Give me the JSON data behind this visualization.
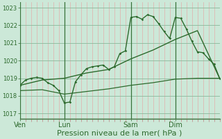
{
  "background_color": "#cce8d8",
  "line_color_dark": "#2d6a2d",
  "grid_color_major_y": "#8ab89a",
  "grid_color_major_x": "#8ab89a",
  "grid_color_minor_x": "#e8a0a0",
  "xlabel": "Pression niveau de la mer( hPa )",
  "xlabel_fontsize": 8,
  "ylim": [
    1016.7,
    1023.3
  ],
  "yticks": [
    1017,
    1018,
    1019,
    1020,
    1021,
    1022,
    1023
  ],
  "xtick_labels": [
    "Ven",
    "Lun",
    "Sam",
    "Dim"
  ],
  "xtick_positions": [
    0,
    48,
    120,
    168
  ],
  "total_hours": 216,
  "line1_x": [
    0,
    24,
    48,
    72,
    96,
    120,
    144,
    168,
    192,
    216
  ],
  "line1_y": [
    1018.6,
    1018.9,
    1019.0,
    1019.3,
    1019.5,
    1020.1,
    1020.6,
    1021.2,
    1021.7,
    1019.0
  ],
  "line2_x": [
    0,
    6,
    12,
    18,
    24,
    30,
    36,
    42,
    48,
    54,
    60,
    66,
    72,
    78,
    84,
    90,
    96,
    102,
    108,
    114,
    120,
    126,
    132,
    138,
    144,
    150,
    156,
    162,
    168,
    174,
    180,
    186,
    192,
    198,
    204,
    210,
    216
  ],
  "line2_y": [
    1018.6,
    1018.9,
    1019.0,
    1019.05,
    1019.0,
    1018.75,
    1018.6,
    1018.3,
    1017.6,
    1017.65,
    1018.8,
    1019.2,
    1019.55,
    1019.65,
    1019.7,
    1019.75,
    1019.5,
    1019.65,
    1020.4,
    1020.55,
    1022.45,
    1022.5,
    1022.35,
    1022.6,
    1022.5,
    1022.1,
    1021.65,
    1021.25,
    1022.45,
    1022.4,
    1021.8,
    1021.1,
    1020.5,
    1020.45,
    1020.1,
    1019.8,
    1019.0
  ],
  "line3_x": [
    0,
    24,
    48,
    72,
    96,
    120,
    144,
    168,
    192,
    216
  ],
  "line3_y": [
    1018.3,
    1018.35,
    1018.1,
    1018.25,
    1018.4,
    1018.6,
    1018.75,
    1018.95,
    1019.0,
    1019.0
  ],
  "vline_positions": [
    0,
    48,
    120,
    168
  ],
  "vline_color": "#2d6a2d",
  "bottom_border_color": "#4a7a4a"
}
